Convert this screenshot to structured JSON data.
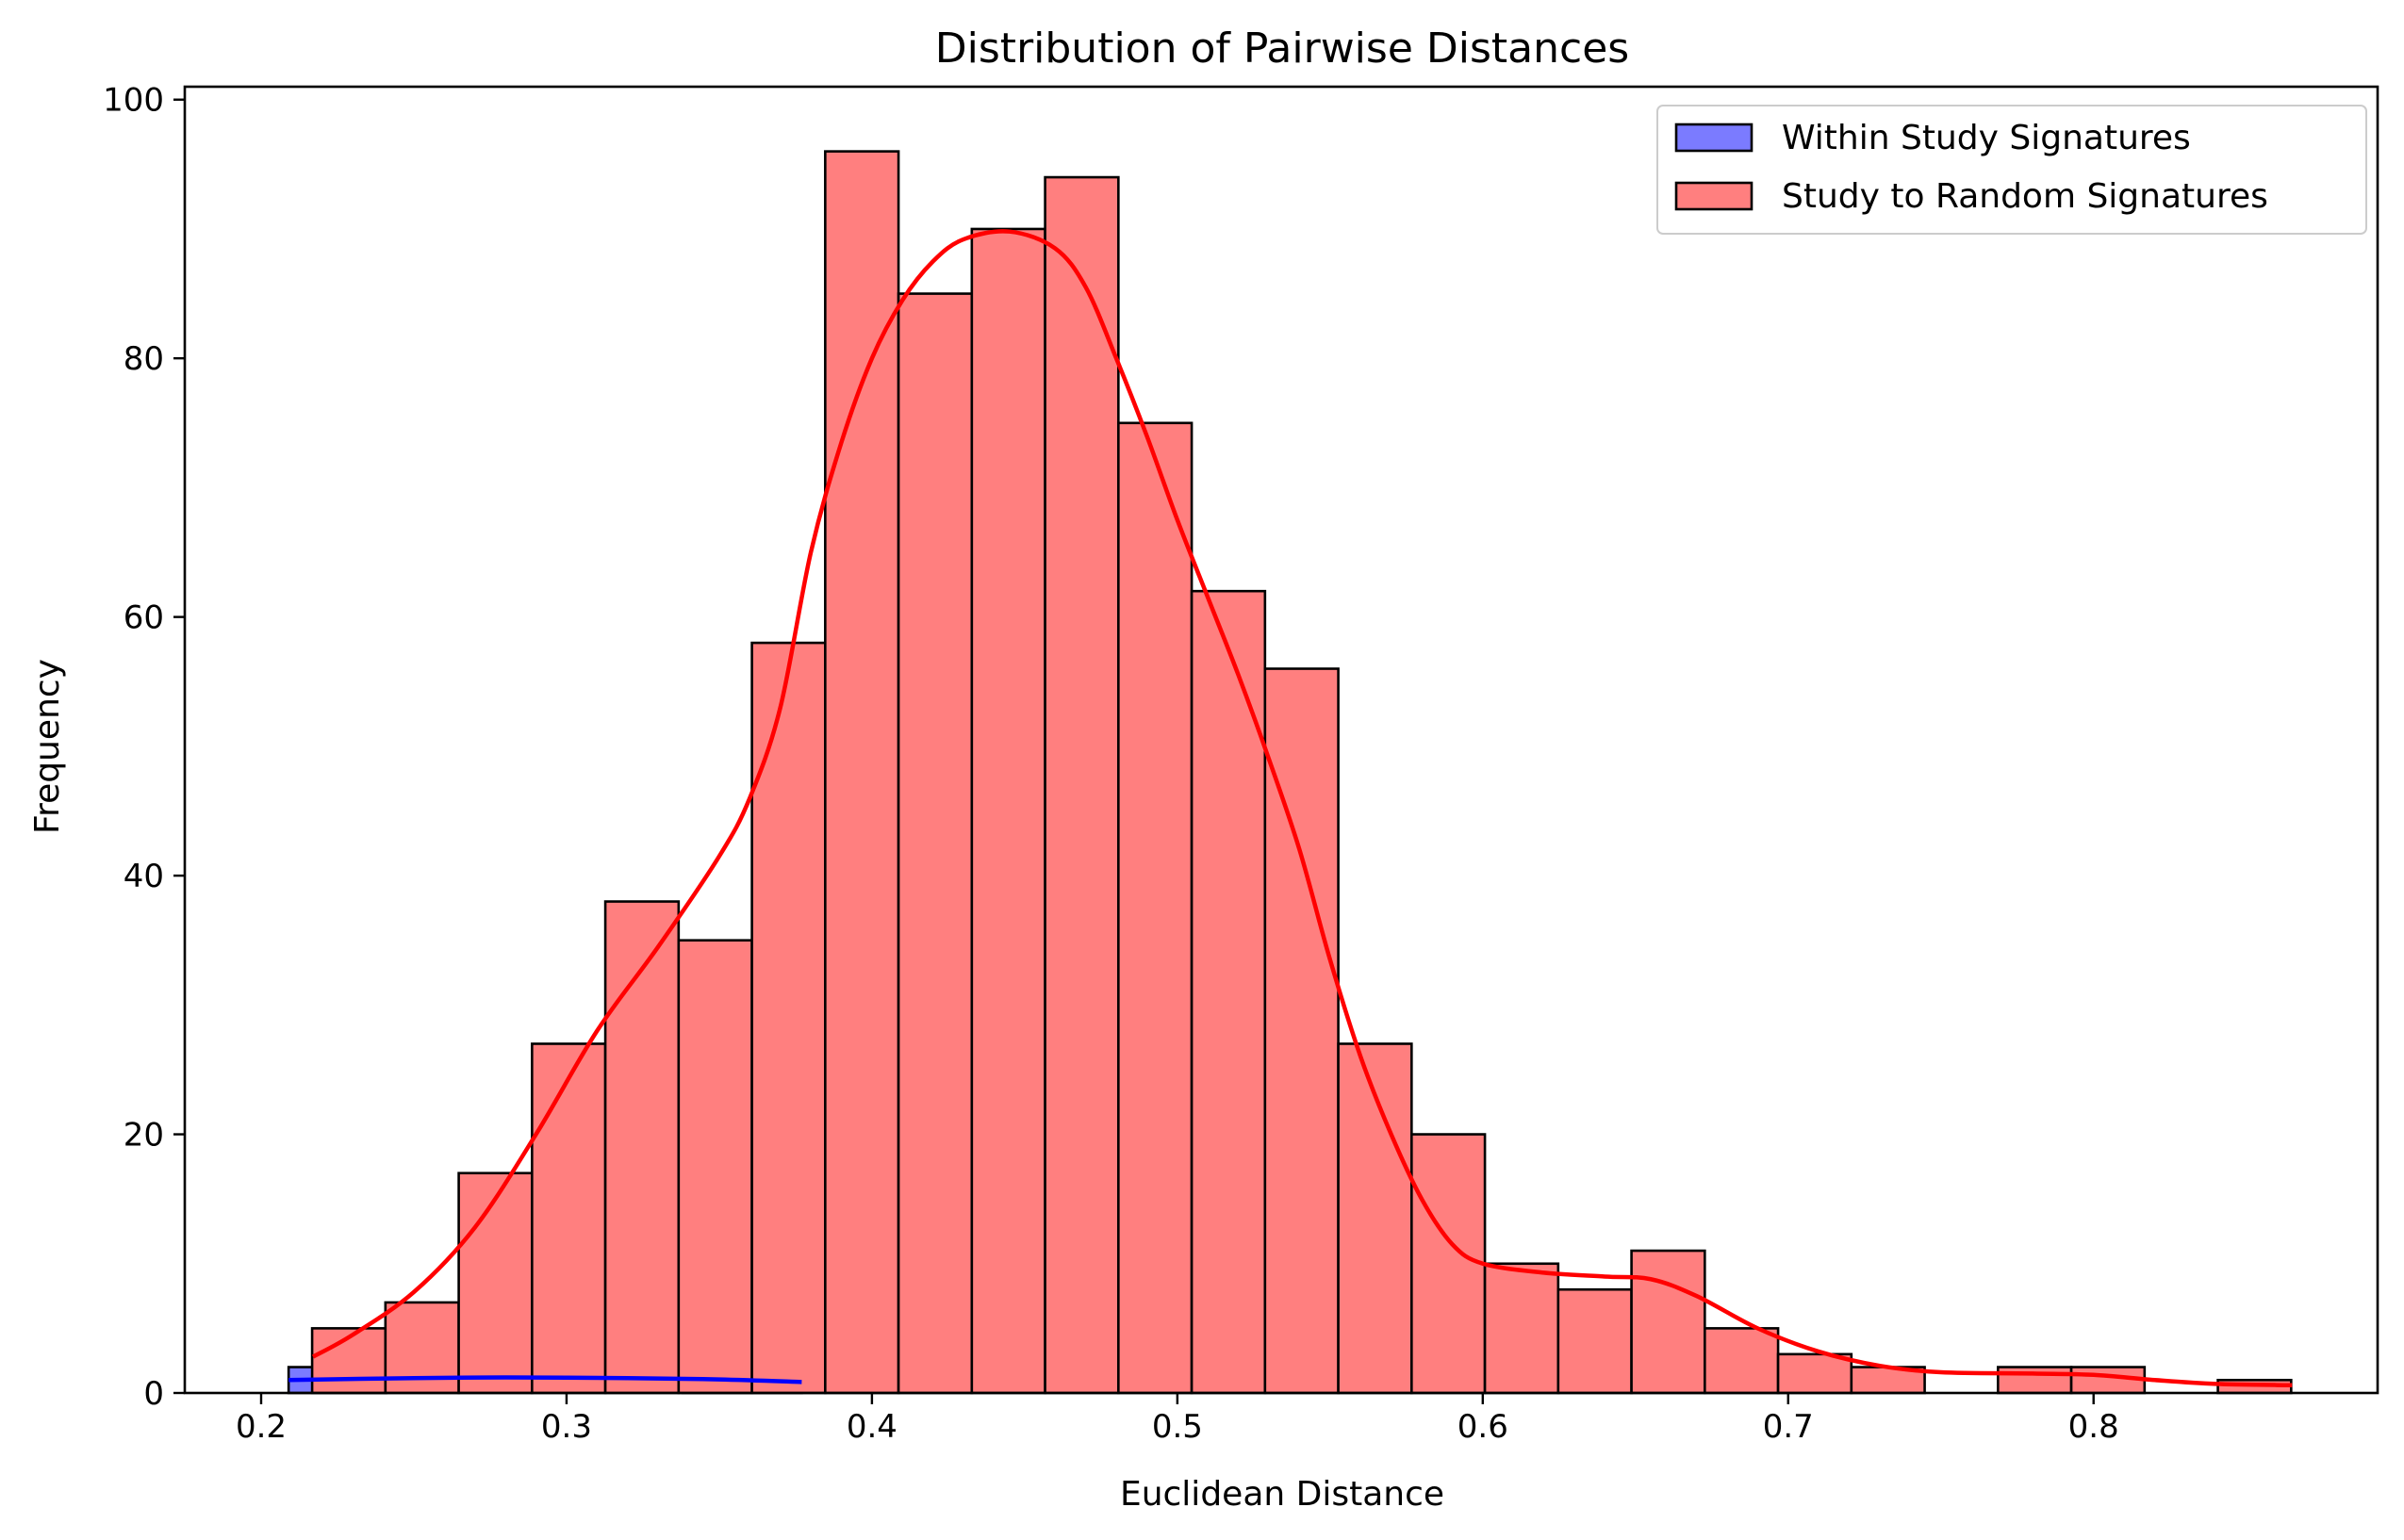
{
  "chart_data": {
    "type": "histogram",
    "title": "Distribution of Pairwise Distances",
    "xlabel": "Euclidean Distance",
    "ylabel": "Frequency",
    "xlim": [
      0.175,
      0.893
    ],
    "ylim": [
      0,
      101
    ],
    "xticks": [
      0.2,
      0.3,
      0.4,
      0.5,
      0.6,
      0.7,
      0.8
    ],
    "xtick_labels": [
      "0.2",
      "0.3",
      "0.4",
      "0.5",
      "0.6",
      "0.7",
      "0.8"
    ],
    "yticks": [
      0,
      20,
      40,
      60,
      80,
      100
    ],
    "ytick_labels": [
      "0",
      "20",
      "40",
      "60",
      "80",
      "100"
    ],
    "legend_position": "top-right",
    "series": [
      {
        "name": "Within Study Signatures",
        "fill_color": "#7b7bff",
        "edge_color": "#000000",
        "kde_color": "#0000ff",
        "bins": [
          {
            "x0": 0.209,
            "x1": 0.241,
            "count": 2
          },
          {
            "x0": 0.241,
            "x1": 0.274,
            "count": 0
          },
          {
            "x0": 0.274,
            "x1": 0.306,
            "count": 0
          },
          {
            "x0": 0.306,
            "x1": 0.338,
            "count": 0
          },
          {
            "x0": 0.338,
            "x1": 0.377,
            "count": 2
          }
        ],
        "kde": [
          [
            0.209,
            1.0
          ],
          [
            0.25,
            1.15
          ],
          [
            0.28,
            1.2
          ],
          [
            0.32,
            1.15
          ],
          [
            0.35,
            1.05
          ],
          [
            0.377,
            0.85
          ]
        ]
      },
      {
        "name": "Study to Random Signatures",
        "fill_color": "#ff7f7f",
        "edge_color": "#000000",
        "kde_color": "#ff0000",
        "bins": [
          {
            "x0": 0.2167,
            "x1": 0.2407,
            "count": 5
          },
          {
            "x0": 0.2407,
            "x1": 0.2647,
            "count": 7
          },
          {
            "x0": 0.2647,
            "x1": 0.2887,
            "count": 17
          },
          {
            "x0": 0.2887,
            "x1": 0.3127,
            "count": 27
          },
          {
            "x0": 0.3127,
            "x1": 0.3367,
            "count": 38
          },
          {
            "x0": 0.3367,
            "x1": 0.3607,
            "count": 35
          },
          {
            "x0": 0.3607,
            "x1": 0.3847,
            "count": 58
          },
          {
            "x0": 0.3847,
            "x1": 0.4087,
            "count": 96
          },
          {
            "x0": 0.4087,
            "x1": 0.4327,
            "count": 85
          },
          {
            "x0": 0.4327,
            "x1": 0.4567,
            "count": 90
          },
          {
            "x0": 0.4567,
            "x1": 0.4807,
            "count": 94
          },
          {
            "x0": 0.4807,
            "x1": 0.5047,
            "count": 75
          },
          {
            "x0": 0.5047,
            "x1": 0.5287,
            "count": 62
          },
          {
            "x0": 0.5287,
            "x1": 0.5527,
            "count": 56
          },
          {
            "x0": 0.5527,
            "x1": 0.5767,
            "count": 27
          },
          {
            "x0": 0.5767,
            "x1": 0.6007,
            "count": 20
          },
          {
            "x0": 0.6007,
            "x1": 0.6247,
            "count": 10
          },
          {
            "x0": 0.6247,
            "x1": 0.6487,
            "count": 8
          },
          {
            "x0": 0.6487,
            "x1": 0.6727,
            "count": 11
          },
          {
            "x0": 0.6727,
            "x1": 0.6967,
            "count": 5
          },
          {
            "x0": 0.6967,
            "x1": 0.7207,
            "count": 3
          },
          {
            "x0": 0.7207,
            "x1": 0.7447,
            "count": 2
          },
          {
            "x0": 0.7447,
            "x1": 0.7687,
            "count": 0
          },
          {
            "x0": 0.7687,
            "x1": 0.7927,
            "count": 2
          },
          {
            "x0": 0.7927,
            "x1": 0.8167,
            "count": 2
          },
          {
            "x0": 0.8167,
            "x1": 0.8407,
            "count": 0
          },
          {
            "x0": 0.8407,
            "x1": 0.8647,
            "count": 1
          }
        ],
        "kde": [
          [
            0.217,
            2.8
          ],
          [
            0.23,
            4.5
          ],
          [
            0.25,
            7.8
          ],
          [
            0.27,
            12.8
          ],
          [
            0.29,
            20
          ],
          [
            0.31,
            28
          ],
          [
            0.33,
            34.5
          ],
          [
            0.35,
            41.5
          ],
          [
            0.36,
            46
          ],
          [
            0.37,
            53
          ],
          [
            0.38,
            65
          ],
          [
            0.39,
            73.5
          ],
          [
            0.4,
            80
          ],
          [
            0.41,
            84.5
          ],
          [
            0.42,
            87.5
          ],
          [
            0.43,
            89.2
          ],
          [
            0.445,
            89.8
          ],
          [
            0.46,
            88.5
          ],
          [
            0.47,
            85.5
          ],
          [
            0.48,
            80
          ],
          [
            0.49,
            74
          ],
          [
            0.5,
            67.5
          ],
          [
            0.51,
            61.5
          ],
          [
            0.52,
            55.5
          ],
          [
            0.53,
            49
          ],
          [
            0.54,
            42
          ],
          [
            0.55,
            33.5
          ],
          [
            0.56,
            26
          ],
          [
            0.57,
            20
          ],
          [
            0.58,
            15
          ],
          [
            0.59,
            11.5
          ],
          [
            0.6,
            10
          ],
          [
            0.62,
            9.3
          ],
          [
            0.64,
            9
          ],
          [
            0.655,
            8.8
          ],
          [
            0.67,
            7.5
          ],
          [
            0.69,
            5
          ],
          [
            0.71,
            3.2
          ],
          [
            0.73,
            2.1
          ],
          [
            0.75,
            1.6
          ],
          [
            0.78,
            1.5
          ],
          [
            0.8,
            1.4
          ],
          [
            0.82,
            1
          ],
          [
            0.84,
            0.7
          ],
          [
            0.865,
            0.6
          ]
        ]
      }
    ]
  }
}
